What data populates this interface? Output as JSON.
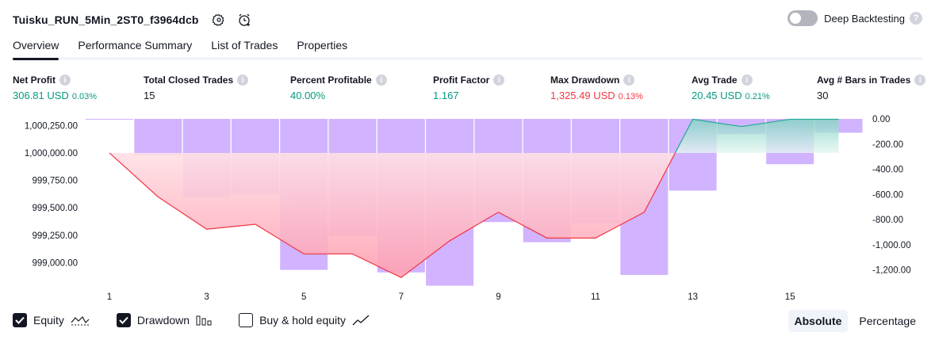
{
  "header": {
    "strategy_name": "Tuisku_RUN_5Min_2ST0_f3964dcb",
    "settings_icon": "gear-icon",
    "alert_icon": "add-alert-icon",
    "deep_backtesting_label": "Deep Backtesting",
    "deep_backtesting_on": false
  },
  "tabs": [
    "Overview",
    "Performance Summary",
    "List of Trades",
    "Properties"
  ],
  "active_tab": "Overview",
  "metrics": [
    {
      "label": "Net Profit",
      "value": "306.81 USD",
      "pct": "0.03%",
      "tone": "pos"
    },
    {
      "label": "Total Closed Trades",
      "value": "15",
      "pct": "",
      "tone": "neutral"
    },
    {
      "label": "Percent Profitable",
      "value": "40.00%",
      "pct": "",
      "tone": "pos"
    },
    {
      "label": "Profit Factor",
      "value": "1.167",
      "pct": "",
      "tone": "pos"
    },
    {
      "label": "Max Drawdown",
      "value": "1,325.49 USD",
      "pct": "0.13%",
      "tone": "neg"
    },
    {
      "label": "Avg Trade",
      "value": "20.45 USD",
      "pct": "0.21%",
      "tone": "pos"
    },
    {
      "label": "Avg # Bars in Trades",
      "value": "30",
      "pct": "",
      "tone": "neutral"
    }
  ],
  "chart_data": {
    "type": "bar",
    "x": [
      1,
      2,
      3,
      4,
      5,
      6,
      7,
      8,
      9,
      10,
      11,
      12,
      13,
      14,
      15,
      16
    ],
    "x_tick_labels": [
      "1",
      "3",
      "5",
      "7",
      "9",
      "11",
      "13",
      "15"
    ],
    "series": [
      {
        "name": "Equity",
        "type": "line",
        "values": [
          1000000.0,
          999600.0,
          999305.0,
          999350.0,
          999080.0,
          999080.0,
          998865.0,
          999200.0,
          999460.0,
          999225.0,
          999225.0,
          999460.0,
          1000306.81,
          1000240.0,
          1000306.81,
          1000306.81
        ]
      },
      {
        "name": "Drawdown",
        "type": "bar",
        "values": [
          0,
          -290,
          -620,
          -600,
          -1200,
          -930,
          -1220,
          -1325.49,
          -820,
          -980,
          -830,
          -1240,
          -570,
          -120,
          -360,
          -110
        ]
      }
    ],
    "y_left_ticks": [
      "1,000,250.00",
      "1,000,000.00",
      "999,750.00",
      "999,500.00",
      "999,250.00",
      "999,000.00"
    ],
    "y_left_range": [
      998780,
      1000310
    ],
    "y_right_ticks": [
      "0.00",
      "-200.00",
      "-400.00",
      "-600.00",
      "-800.00",
      "-1,000.00",
      "-1,200.00"
    ],
    "y_right_range": [
      -1335,
      0
    ],
    "colors": {
      "equity_loss_line": "#f23645",
      "equity_profit_line": "#22ab94",
      "drawdown_bar": "#d1b3ff",
      "loss_fill": "#ff9eb0",
      "profit_fill": "#a8e0d4"
    }
  },
  "legend": {
    "equity_label": "Equity",
    "equity_checked": true,
    "drawdown_label": "Drawdown",
    "drawdown_checked": true,
    "buyhold_label": "Buy & hold equity",
    "buyhold_checked": false
  },
  "view_switch": {
    "absolute_label": "Absolute",
    "percentage_label": "Percentage",
    "active": "Absolute"
  }
}
